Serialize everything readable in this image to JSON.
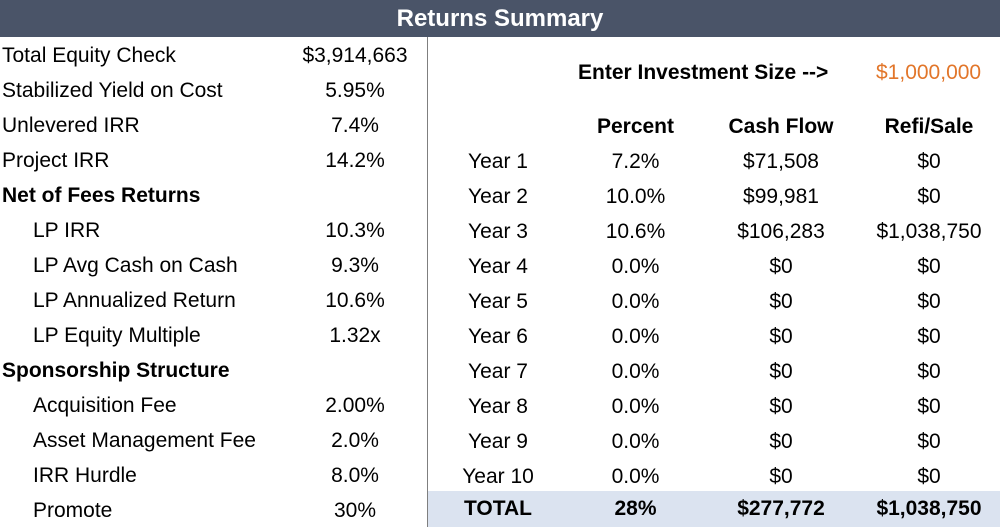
{
  "title": "Returns Summary",
  "left": {
    "rows": [
      {
        "label": "Total Equity Check",
        "value": "$3,914,663"
      },
      {
        "label": "Stabilized Yield on Cost",
        "value": "5.95%"
      },
      {
        "label": "Unlevered IRR",
        "value": "7.4%"
      },
      {
        "label": "Project IRR",
        "value": "14.2%"
      },
      {
        "label": "Net of Fees Returns",
        "value": ""
      },
      {
        "label": "LP IRR",
        "value": "10.3%"
      },
      {
        "label": "LP Avg Cash on Cash",
        "value": "9.3%"
      },
      {
        "label": "LP Annualized Return",
        "value": "10.6%"
      },
      {
        "label": "LP Equity Multiple",
        "value": "1.32x"
      },
      {
        "label": "Sponsorship Structure",
        "value": ""
      },
      {
        "label": "Acquisition Fee",
        "value": "2.00%"
      },
      {
        "label": "Asset Management Fee",
        "value": "2.0%"
      },
      {
        "label": "IRR Hurdle",
        "value": "8.0%"
      },
      {
        "label": "Promote",
        "value": "30%"
      }
    ]
  },
  "investment": {
    "label": "Enter Investment Size -->",
    "value": "$1,000,000"
  },
  "table": {
    "headers": [
      "Percent",
      "Cash Flow",
      "Refi/Sale"
    ],
    "rows": [
      {
        "year": "Year 1",
        "percent": "7.2%",
        "cash_flow": "$71,508",
        "refi_sale": "$0"
      },
      {
        "year": "Year 2",
        "percent": "10.0%",
        "cash_flow": "$99,981",
        "refi_sale": "$0"
      },
      {
        "year": "Year 3",
        "percent": "10.6%",
        "cash_flow": "$106,283",
        "refi_sale": "$1,038,750"
      },
      {
        "year": "Year 4",
        "percent": "0.0%",
        "cash_flow": "$0",
        "refi_sale": "$0"
      },
      {
        "year": "Year 5",
        "percent": "0.0%",
        "cash_flow": "$0",
        "refi_sale": "$0"
      },
      {
        "year": "Year 6",
        "percent": "0.0%",
        "cash_flow": "$0",
        "refi_sale": "$0"
      },
      {
        "year": "Year 7",
        "percent": "0.0%",
        "cash_flow": "$0",
        "refi_sale": "$0"
      },
      {
        "year": "Year 8",
        "percent": "0.0%",
        "cash_flow": "$0",
        "refi_sale": "$0"
      },
      {
        "year": "Year 9",
        "percent": "0.0%",
        "cash_flow": "$0",
        "refi_sale": "$0"
      },
      {
        "year": "Year 10",
        "percent": "0.0%",
        "cash_flow": "$0",
        "refi_sale": "$0"
      }
    ],
    "total": {
      "label": "TOTAL",
      "percent": "28%",
      "cash_flow": "$277,772",
      "refi_sale": "$1,038,750"
    }
  },
  "colors": {
    "title_bar": "#4a5468",
    "investment_value": "#e2762a",
    "total_row": "#dbe3f0"
  }
}
